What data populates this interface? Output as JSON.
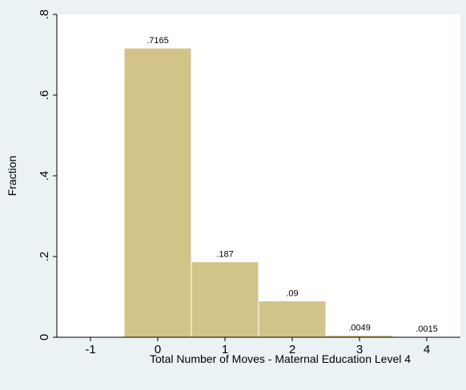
{
  "chart_data": {
    "type": "bar",
    "xlabel": "Total Number of Moves - Maternal Education Level 4",
    "ylabel": "Fraction",
    "xlim": [
      -1.5,
      4.5
    ],
    "ylim": [
      0,
      0.8
    ],
    "x_ticks": [
      {
        "value": -1,
        "label": "-1"
      },
      {
        "value": 0,
        "label": "0"
      },
      {
        "value": 1,
        "label": "1"
      },
      {
        "value": 2,
        "label": "2"
      },
      {
        "value": 3,
        "label": "3"
      },
      {
        "value": 4,
        "label": "4"
      }
    ],
    "y_ticks": [
      {
        "value": 0,
        "label": "0"
      },
      {
        "value": 0.2,
        "label": ".2"
      },
      {
        "value": 0.4,
        "label": ".4"
      },
      {
        "value": 0.6,
        "label": ".6"
      },
      {
        "value": 0.8,
        "label": ".8"
      }
    ],
    "bars": [
      {
        "x": 0,
        "value": 0.7165,
        "label": ".7165"
      },
      {
        "x": 1,
        "value": 0.187,
        "label": ".187"
      },
      {
        "x": 2,
        "value": 0.09,
        "label": ".09"
      },
      {
        "x": 3,
        "value": 0.0049,
        "label": ".0049"
      },
      {
        "x": 4,
        "value": 0.0015,
        "label": ".0015"
      }
    ],
    "bar_width": 1,
    "grid": false,
    "colors": {
      "background": "#eaf2f3",
      "plot_background": "#ffffff",
      "bar_fill": "#d2c489",
      "bar_stroke": "#ffffff",
      "axis": "#000000"
    }
  }
}
